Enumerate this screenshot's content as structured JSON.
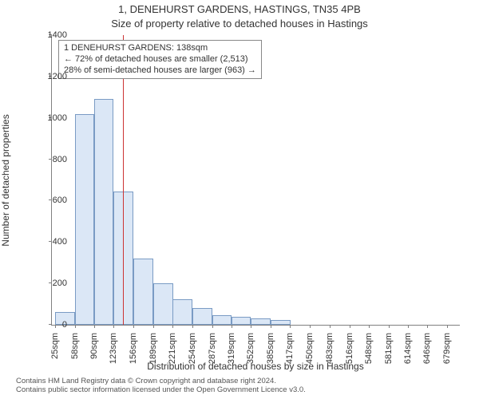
{
  "title": "1, DENEHURST GARDENS, HASTINGS, TN35 4PB",
  "subtitle": "Size of property relative to detached houses in Hastings",
  "y_axis_label": "Number of detached properties",
  "x_axis_label": "Distribution of detached houses by size in Hastings",
  "attribution_line1": "Contains HM Land Registry data © Crown copyright and database right 2024.",
  "attribution_line2": "Contains public sector information licensed under the Open Government Licence v3.0.",
  "chart": {
    "type": "histogram",
    "background_color": "#ffffff",
    "bar_fill": "#dbe7f6",
    "bar_border": "#7a9bc4",
    "axis_color": "#808080",
    "marker_color": "#cc3333",
    "text_color": "#333333",
    "title_fontsize": 13,
    "axis_label_fontsize": 12,
    "tick_fontsize": 11,
    "annotation_fontsize": 11,
    "ylim": [
      0,
      1400
    ],
    "yticks": [
      0,
      200,
      400,
      600,
      800,
      1000,
      1200,
      1400
    ],
    "xlim": [
      20,
      700
    ],
    "xtick_values": [
      25,
      58,
      90,
      123,
      156,
      189,
      221,
      254,
      287,
      319,
      352,
      385,
      417,
      450,
      483,
      516,
      548,
      581,
      614,
      646,
      679
    ],
    "xtick_labels": [
      "25sqm",
      "58sqm",
      "90sqm",
      "123sqm",
      "156sqm",
      "189sqm",
      "221sqm",
      "254sqm",
      "287sqm",
      "319sqm",
      "352sqm",
      "385sqm",
      "417sqm",
      "450sqm",
      "483sqm",
      "516sqm",
      "548sqm",
      "581sqm",
      "614sqm",
      "646sqm",
      "679sqm"
    ],
    "categories_start": [
      25,
      58,
      90,
      123,
      156,
      189,
      221,
      254,
      287,
      319,
      352,
      385
    ],
    "bar_width_sqm": 33,
    "values": [
      60,
      1020,
      1090,
      645,
      320,
      200,
      125,
      80,
      45,
      38,
      30,
      22
    ],
    "marker_value_sqm": 138,
    "annotation_lines": [
      "1 DENEHURST GARDENS: 138sqm",
      "← 72% of detached houses are smaller (2,513)",
      "28% of semi-detached houses are larger (963) →"
    ]
  }
}
